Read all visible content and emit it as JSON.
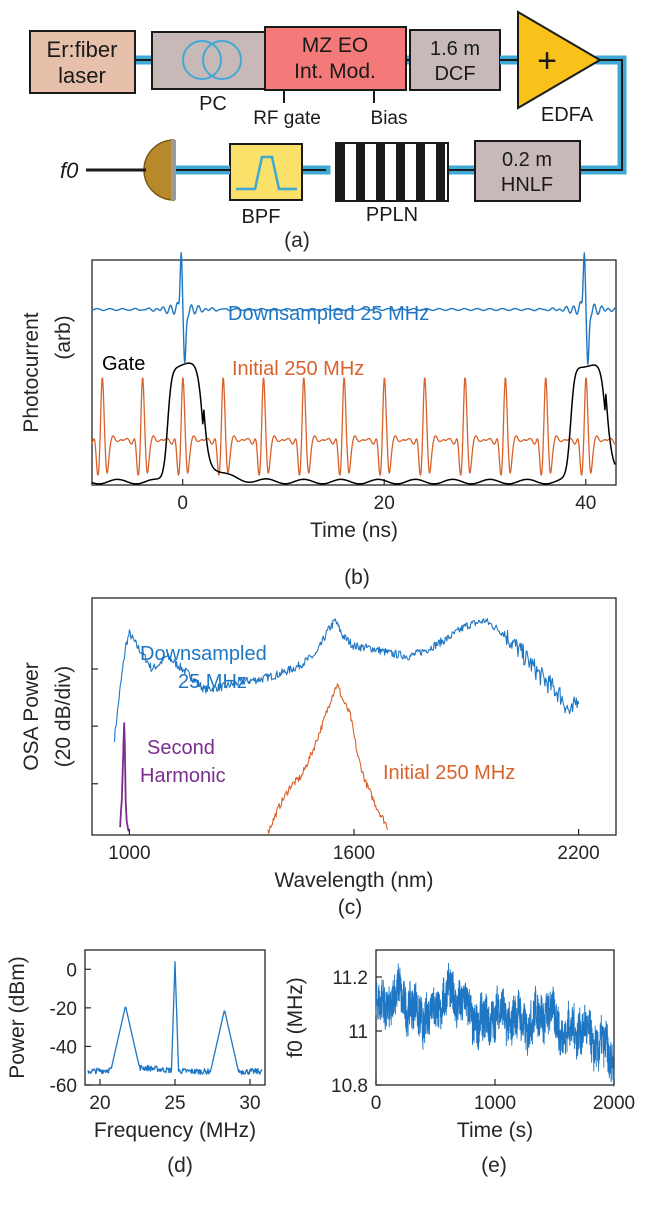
{
  "diagram": {
    "components": {
      "laser": [
        "Er:fiber",
        "laser"
      ],
      "pc": "PC",
      "modulator": [
        "MZ EO",
        "Int. Mod."
      ],
      "rf_gate": "RF gate",
      "bias": "Bias",
      "dcf": [
        "1.6 m",
        "DCF"
      ],
      "edfa_symbol": "+",
      "edfa": "EDFA",
      "hnlf": [
        "0.2 m",
        "HNLF"
      ],
      "ppln": "PPLN",
      "bpf": "BPF",
      "f0": "f0"
    },
    "caption": "(a)",
    "colors": {
      "fiber": "#3fa9d6",
      "laser": "#e7c0ac",
      "gray_box": "#c8b9b9",
      "modulator": "#f47a7a",
      "edfa": "#f9c21a",
      "bpf": "#f9e16a",
      "detector": "#b8892a"
    }
  },
  "panels": {
    "b": {
      "caption": "(b)"
    },
    "c": {
      "caption": "(c)"
    },
    "d": {
      "caption": "(d)"
    },
    "e": {
      "caption": "(e)"
    }
  },
  "chart_data": [
    {
      "id": "b",
      "type": "line",
      "xlabel": "Time (ns)",
      "ylabel": "Photocurrent (arb)",
      "xlim": [
        -9,
        43
      ],
      "xticks": [
        0,
        20,
        40
      ],
      "yticks": [],
      "series": [
        {
          "name": "Downsampled 25 MHz",
          "color": "#1f77c4",
          "pulse_period_ns": 40,
          "pulse_times_ns": [
            0,
            40
          ],
          "offset": 0.78,
          "amplitude": 0.3
        },
        {
          "name": "Initial 250 MHz",
          "color": "#d9622b",
          "pulse_period_ns": 4,
          "first_pulse_ns": 0,
          "offset": 0.2,
          "amplitude": 0.28
        },
        {
          "name": "Gate",
          "color": "#000000",
          "gate_windows_ns": [
            [
              -1.5,
              2
            ],
            [
              38.5,
              42
            ]
          ],
          "high": 0.52,
          "low": 0.0
        }
      ]
    },
    {
      "id": "c",
      "type": "line",
      "xlabel": "Wavelength (nm)",
      "ylabel": "OSA Power (20 dB/div)",
      "xlim": [
        900,
        2300
      ],
      "xticks": [
        1000,
        1600,
        2200
      ],
      "yticks": [],
      "series": [
        {
          "name": "Downsampled 25 MHz",
          "color": "#1f77c4",
          "x": [
            960,
            975,
            990,
            1000,
            1020,
            1040,
            1060,
            1080,
            1100,
            1150,
            1200,
            1250,
            1300,
            1350,
            1400,
            1450,
            1500,
            1530,
            1550,
            1570,
            1600,
            1650,
            1700,
            1750,
            1800,
            1850,
            1900,
            1950,
            2000,
            2050,
            2100,
            2150,
            2180,
            2200
          ],
          "y": [
            -2.35,
            -1.4,
            -0.55,
            -0.3,
            -0.55,
            -0.75,
            -1.0,
            -0.9,
            -0.75,
            -1.05,
            -1.4,
            -1.35,
            -1.25,
            -1.2,
            -1.1,
            -0.95,
            -0.7,
            -0.25,
            -0.05,
            -0.35,
            -0.55,
            -0.6,
            -0.7,
            -0.75,
            -0.6,
            -0.4,
            -0.15,
            -0.05,
            -0.3,
            -0.7,
            -1.15,
            -1.5,
            -1.9,
            -1.5
          ]
        },
        {
          "name": "Initial 250 MHz",
          "color": "#d9622b",
          "x": [
            1370,
            1400,
            1430,
            1460,
            1490,
            1520,
            1540,
            1555,
            1570,
            1590,
            1610,
            1630,
            1660,
            1690
          ],
          "y": [
            -4.2,
            -3.7,
            -3.3,
            -3.1,
            -2.6,
            -2.0,
            -1.55,
            -1.3,
            -1.6,
            -1.9,
            -2.7,
            -3.2,
            -3.7,
            -4.1
          ]
        },
        {
          "name": "Second Harmonic",
          "color": "#7b2d8e",
          "x": [
            975,
            980,
            984,
            986,
            988,
            990,
            993,
            998
          ],
          "y": [
            -4.1,
            -3.5,
            -2.5,
            -2.05,
            -2.6,
            -3.6,
            -4.0,
            -4.2
          ]
        }
      ]
    },
    {
      "id": "d",
      "type": "line",
      "xlabel": "Frequency (MHz)",
      "ylabel": "Power (dBm)",
      "xlim": [
        19,
        31
      ],
      "ylim": [
        -60,
        10
      ],
      "xticks": [
        20,
        25,
        30
      ],
      "yticks": [
        0,
        -20,
        -40,
        -60
      ],
      "series": [
        {
          "name": "",
          "color": "#1f77c4",
          "peaks": [
            [
              21.7,
              -19
            ],
            [
              25,
              4
            ],
            [
              28.3,
              -21
            ]
          ],
          "floor": -53
        }
      ]
    },
    {
      "id": "e",
      "type": "line",
      "xlabel": "Time (s)",
      "ylabel": "f0 (MHz)",
      "xlim": [
        0,
        2000
      ],
      "ylim": [
        10.8,
        11.3
      ],
      "xticks": [
        0,
        1000,
        2000
      ],
      "yticks": [
        11.2,
        11,
        10.8
      ],
      "series": [
        {
          "name": "",
          "color": "#1f77c4",
          "x": [
            0,
            100,
            200,
            300,
            400,
            500,
            600,
            700,
            800,
            900,
            1000,
            1100,
            1200,
            1300,
            1400,
            1500,
            1600,
            1700,
            1800,
            1900,
            2000
          ],
          "y": [
            11.08,
            11.1,
            11.14,
            11.08,
            11.05,
            11.08,
            11.14,
            11.12,
            11.06,
            11.02,
            11.07,
            11.05,
            11.04,
            11.02,
            11.08,
            11.05,
            10.98,
            11.02,
            10.97,
            10.94,
            10.9
          ]
        }
      ]
    }
  ]
}
